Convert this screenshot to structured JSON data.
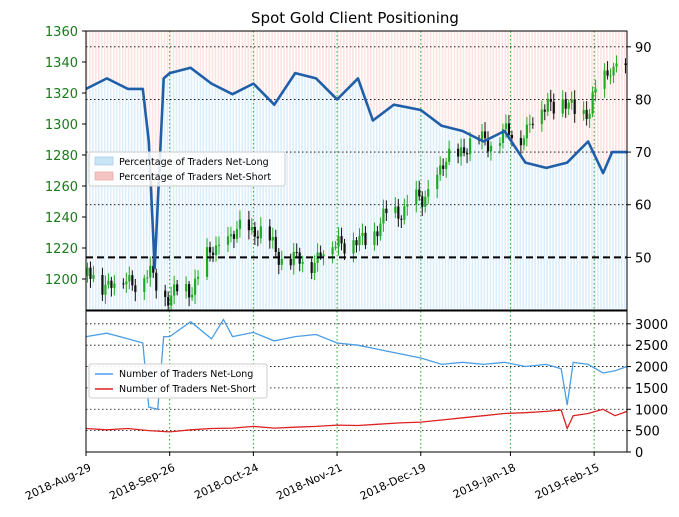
{
  "chart_data": [
    {
      "type": "candlestick+line",
      "title": "Spot Gold Client Positioning",
      "x_ticks": [
        "2018-Aug-29",
        "2018-Sep-26",
        "2018-Oct-24",
        "2018-Nov-21",
        "2018-Dec-19",
        "2019-Jan-18",
        "2019-Feb-15"
      ],
      "xlim": [
        "2018-08-29",
        "2019-02-26"
      ],
      "left_axis": {
        "ylim": [
          1180,
          1360
        ],
        "ticks": [
          1200,
          1220,
          1240,
          1260,
          1280,
          1300,
          1320,
          1340,
          1360
        ],
        "color": "#1a7a1a"
      },
      "right_axis": {
        "ylim": [
          40,
          93
        ],
        "ticks": [
          50,
          60,
          70,
          80,
          90
        ],
        "reference_line": 50
      },
      "legend": [
        "Percentage of Traders Net-Long",
        "Percentage of Traders Net-Short"
      ],
      "legend_position": "left-middle",
      "grid": true,
      "price_weekly_close": [
        [
          "2018-08-29",
          1202
        ],
        [
          "2018-09-05",
          1197
        ],
        [
          "2018-09-12",
          1200
        ],
        [
          "2018-09-19",
          1201
        ],
        [
          "2018-09-26",
          1188
        ],
        [
          "2018-10-03",
          1196
        ],
        [
          "2018-10-10",
          1218
        ],
        [
          "2018-10-17",
          1228
        ],
        [
          "2018-10-24",
          1234
        ],
        [
          "2018-10-31",
          1218
        ],
        [
          "2018-11-07",
          1210
        ],
        [
          "2018-11-14",
          1214
        ],
        [
          "2018-11-21",
          1226
        ],
        [
          "2018-11-28",
          1222
        ],
        [
          "2018-12-05",
          1236
        ],
        [
          "2018-12-12",
          1246
        ],
        [
          "2018-12-19",
          1250
        ],
        [
          "2018-12-26",
          1272
        ],
        [
          "2019-01-02",
          1286
        ],
        [
          "2019-01-09",
          1290
        ],
        [
          "2019-01-16",
          1292
        ],
        [
          "2019-01-23",
          1296
        ],
        [
          "2019-01-30",
          1316
        ],
        [
          "2019-02-06",
          1310
        ],
        [
          "2019-02-13",
          1308
        ],
        [
          "2019-02-20",
          1340
        ],
        [
          "2019-02-26",
          1328
        ]
      ],
      "percent_net_long": [
        [
          "2018-08-29",
          82
        ],
        [
          "2018-09-05",
          84
        ],
        [
          "2018-09-12",
          82
        ],
        [
          "2018-09-17",
          82
        ],
        [
          "2018-09-19",
          72
        ],
        [
          "2018-09-21",
          48
        ],
        [
          "2018-09-24",
          84
        ],
        [
          "2018-09-26",
          85
        ],
        [
          "2018-10-03",
          86
        ],
        [
          "2018-10-10",
          83
        ],
        [
          "2018-10-17",
          81
        ],
        [
          "2018-10-24",
          83
        ],
        [
          "2018-10-31",
          79
        ],
        [
          "2018-11-07",
          85
        ],
        [
          "2018-11-14",
          84
        ],
        [
          "2018-11-21",
          80
        ],
        [
          "2018-11-28",
          84
        ],
        [
          "2018-12-03",
          76
        ],
        [
          "2018-12-10",
          79
        ],
        [
          "2018-12-19",
          78
        ],
        [
          "2018-12-26",
          75
        ],
        [
          "2019-01-02",
          74
        ],
        [
          "2019-01-09",
          72
        ],
        [
          "2019-01-16",
          74
        ],
        [
          "2019-01-23",
          68
        ],
        [
          "2019-01-30",
          67
        ],
        [
          "2019-02-06",
          68
        ],
        [
          "2019-02-13",
          72
        ],
        [
          "2019-02-18",
          66
        ],
        [
          "2019-02-21",
          70
        ],
        [
          "2019-02-26",
          70
        ]
      ]
    },
    {
      "type": "line",
      "ylim": [
        0,
        3300
      ],
      "y_ticks": [
        0,
        500,
        1000,
        1500,
        2000,
        2500,
        3000
      ],
      "legend_position": "left-middle",
      "grid": true,
      "series": [
        {
          "name": "Number of Traders Net-Long",
          "color": "#4a9ee8",
          "points": [
            [
              "2018-08-29",
              2700
            ],
            [
              "2018-09-05",
              2780
            ],
            [
              "2018-09-12",
              2650
            ],
            [
              "2018-09-17",
              2550
            ],
            [
              "2018-09-19",
              1050
            ],
            [
              "2018-09-22",
              1000
            ],
            [
              "2018-09-24",
              2700
            ],
            [
              "2018-09-26",
              2700
            ],
            [
              "2018-10-03",
              3050
            ],
            [
              "2018-10-10",
              2650
            ],
            [
              "2018-10-14",
              3100
            ],
            [
              "2018-10-17",
              2700
            ],
            [
              "2018-10-24",
              2800
            ],
            [
              "2018-10-31",
              2600
            ],
            [
              "2018-11-07",
              2700
            ],
            [
              "2018-11-14",
              2750
            ],
            [
              "2018-11-21",
              2550
            ],
            [
              "2018-11-28",
              2500
            ],
            [
              "2018-12-05",
              2400
            ],
            [
              "2018-12-12",
              2300
            ],
            [
              "2018-12-19",
              2200
            ],
            [
              "2018-12-26",
              2050
            ],
            [
              "2019-01-02",
              2100
            ],
            [
              "2019-01-09",
              2050
            ],
            [
              "2019-01-16",
              2100
            ],
            [
              "2019-01-23",
              2000
            ],
            [
              "2019-01-30",
              2050
            ],
            [
              "2019-02-04",
              1950
            ],
            [
              "2019-02-06",
              1100
            ],
            [
              "2019-02-08",
              2100
            ],
            [
              "2019-02-13",
              2050
            ],
            [
              "2019-02-18",
              1850
            ],
            [
              "2019-02-22",
              1900
            ],
            [
              "2019-02-26",
              2000
            ]
          ]
        },
        {
          "name": "Number of Traders Net-Short",
          "color": "#dd2222",
          "points": [
            [
              "2018-08-29",
              550
            ],
            [
              "2018-09-05",
              520
            ],
            [
              "2018-09-12",
              550
            ],
            [
              "2018-09-19",
              500
            ],
            [
              "2018-09-26",
              470
            ],
            [
              "2018-10-03",
              520
            ],
            [
              "2018-10-10",
              550
            ],
            [
              "2018-10-17",
              560
            ],
            [
              "2018-10-24",
              600
            ],
            [
              "2018-10-31",
              560
            ],
            [
              "2018-11-07",
              580
            ],
            [
              "2018-11-14",
              600
            ],
            [
              "2018-11-21",
              630
            ],
            [
              "2018-11-28",
              620
            ],
            [
              "2018-12-05",
              650
            ],
            [
              "2018-12-12",
              680
            ],
            [
              "2018-12-19",
              700
            ],
            [
              "2018-12-26",
              750
            ],
            [
              "2019-01-02",
              800
            ],
            [
              "2019-01-09",
              850
            ],
            [
              "2019-01-16",
              900
            ],
            [
              "2019-01-23",
              920
            ],
            [
              "2019-01-30",
              950
            ],
            [
              "2019-02-04",
              980
            ],
            [
              "2019-02-06",
              550
            ],
            [
              "2019-02-08",
              850
            ],
            [
              "2019-02-13",
              900
            ],
            [
              "2019-02-18",
              1000
            ],
            [
              "2019-02-22",
              850
            ],
            [
              "2019-02-26",
              950
            ]
          ]
        }
      ]
    }
  ]
}
